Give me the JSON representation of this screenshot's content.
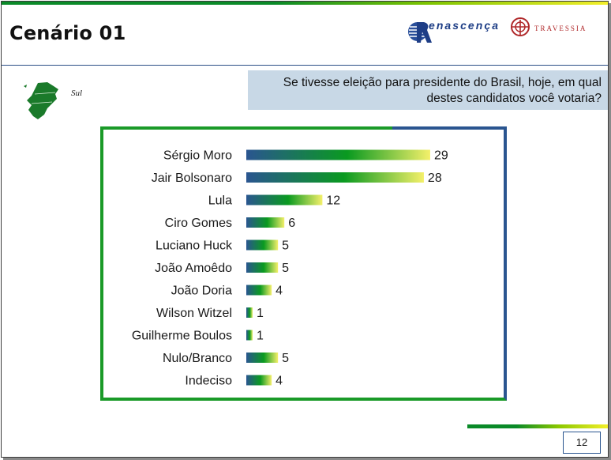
{
  "header": {
    "title": "Cenário 01",
    "logo_left_text": "Renascença",
    "logo_right_text": "TRAVESSIA"
  },
  "region": {
    "label": "Sul"
  },
  "question": {
    "text": "Se tivesse eleição para presidente do Brasil, hoje, em qual destes candidatos você votaria?"
  },
  "page": {
    "number": "12"
  },
  "colors": {
    "bar_start": "#2a5590",
    "bar_mid": "#0a9a20",
    "bar_end": "#f4f06a",
    "accent_green": "#1a9a28",
    "accent_blue": "#2a5590"
  },
  "chart_data": {
    "type": "bar",
    "orientation": "horizontal",
    "categories": [
      "Sérgio Moro",
      "Jair Bolsonaro",
      "Lula",
      "Ciro Gomes",
      "Luciano Huck",
      "João Amoêdo",
      "João Doria",
      "Wilson Witzel",
      "Guilherme Boulos",
      "Nulo/Branco",
      "Indeciso"
    ],
    "values": [
      29,
      28,
      12,
      6,
      5,
      5,
      4,
      1,
      1,
      5,
      4
    ],
    "data_labels": [
      "29",
      "28",
      "12",
      "6",
      "5",
      "5",
      "4",
      "1",
      "1",
      "5",
      "4"
    ],
    "xlim": [
      0,
      30
    ],
    "grid": false,
    "legend": "none"
  }
}
